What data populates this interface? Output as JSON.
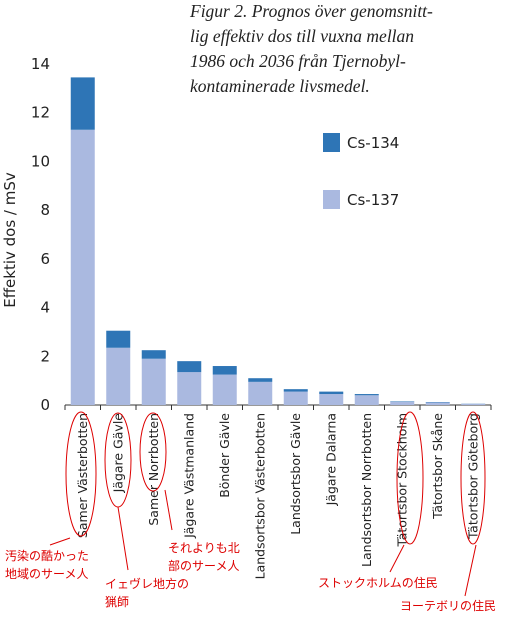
{
  "chart_data": {
    "type": "stacked-bar",
    "title_lines": [
      "Figur 2. Prognos över genomsnitt-",
      "lig effektiv dos till vuxna mellan",
      "1986 och 2036 från Tjernobyl-",
      "kontaminerade livsmedel."
    ],
    "y_label": "Effektiv dos / mSv",
    "categories": [
      "Samer Västerbotten",
      "Jägare Gävle",
      "Samer Norrbotten",
      "Jägare Västmanland",
      "Bönder Gävle",
      "Landsortsbor Västerbotten",
      "Landsortsbor Gävle",
      "Jägare Dalarna",
      "Landsortsbor Norrbotten",
      "Tätortsbor Stockholm",
      "Tätortsbor Skåne",
      "Tätortsbor Göteborg"
    ],
    "series": [
      {
        "name": "Cs-137",
        "color": "#aab9e0",
        "values": [
          11.3,
          2.35,
          1.9,
          1.35,
          1.25,
          0.95,
          0.55,
          0.45,
          0.4,
          0.13,
          0.1,
          0.04
        ]
      },
      {
        "name": "Cs-134",
        "color": "#2e75b6",
        "values": [
          2.15,
          0.7,
          0.35,
          0.45,
          0.35,
          0.15,
          0.1,
          0.1,
          0.05,
          0.02,
          0.02,
          0.01
        ]
      }
    ],
    "ylim": [
      0,
      14
    ],
    "yticks": [
      0,
      2,
      4,
      6,
      8,
      10,
      12,
      14
    ],
    "annotations": [
      {
        "lines": [
          "汚染の酷かった",
          "地域のサーメ人"
        ]
      },
      {
        "lines": [
          "イェヴレ地方の",
          "猟師"
        ]
      },
      {
        "lines": [
          "それよりも北",
          "部のサーメ人"
        ]
      },
      {
        "lines": [
          "ストックホルムの住民"
        ]
      },
      {
        "lines": [
          "ヨーテボリの住民"
        ]
      }
    ]
  }
}
